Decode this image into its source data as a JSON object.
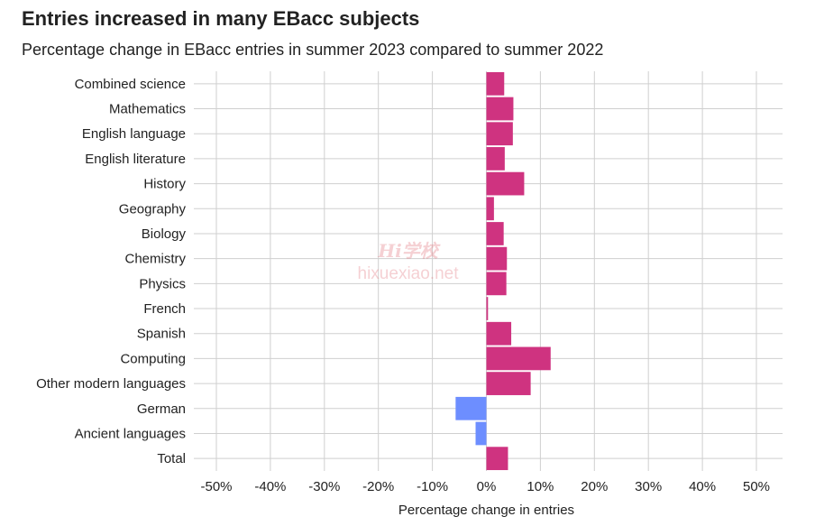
{
  "title": "Entries increased in many EBacc subjects",
  "subtitle": "Percentage change in EBacc entries in summer 2023 compared to summer 2022",
  "watermark": {
    "logo": "Hi学校",
    "url": "hixuexiao.net"
  },
  "colors": {
    "positive": "#cf3380",
    "negative": "#6d8eff",
    "grid": "#cfcfcf",
    "text": "#222222"
  },
  "chart_data": {
    "type": "bar",
    "orientation": "horizontal",
    "categories": [
      "Combined science",
      "Mathematics",
      "English language",
      "English literature",
      "History",
      "Geography",
      "Biology",
      "Chemistry",
      "Physics",
      "French",
      "Spanish",
      "Computing",
      "Other modern languages",
      "German",
      "Ancient languages",
      "Total"
    ],
    "values": [
      3.3,
      5.0,
      4.9,
      3.4,
      7.0,
      1.4,
      3.2,
      3.8,
      3.7,
      0.3,
      4.6,
      11.9,
      8.2,
      -5.7,
      -2.0,
      4.0
    ],
    "xlabel": "Percentage change in entries",
    "ylabel": "",
    "xlim": [
      -50,
      50
    ],
    "xticks": [
      -50,
      -40,
      -30,
      -20,
      -10,
      0,
      10,
      20,
      30,
      40,
      50
    ],
    "xtick_labels": [
      "-50%",
      "-40%",
      "-30%",
      "-20%",
      "-10%",
      "0%",
      "10%",
      "20%",
      "30%",
      "40%",
      "50%"
    ],
    "grid": true,
    "legend": "none"
  }
}
